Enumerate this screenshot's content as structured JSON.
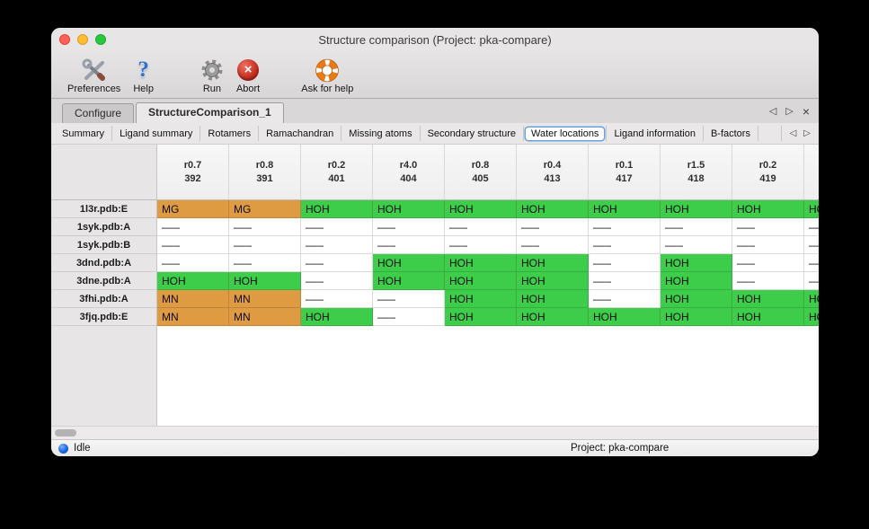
{
  "window": {
    "title": "Structure comparison (Project: pka-compare)"
  },
  "toolbar": {
    "items": [
      {
        "label": "Preferences"
      },
      {
        "label": "Help"
      },
      {
        "label": "Run"
      },
      {
        "label": "Abort"
      },
      {
        "label": "Ask for help"
      }
    ]
  },
  "primary_tabs": {
    "tabs": [
      {
        "label": "Configure",
        "active": false
      },
      {
        "label": "StructureComparison_1",
        "active": true
      }
    ],
    "nav": {
      "prev": "◁",
      "next": "▷",
      "close": "×"
    }
  },
  "secondary_tabs": {
    "tabs": [
      "Summary",
      "Ligand summary",
      "Rotamers",
      "Ramachandran",
      "Missing atoms",
      "Secondary structure",
      "Water locations",
      "Ligand information",
      "B-factors"
    ],
    "selected": "Water locations",
    "nav": {
      "prev": "◁",
      "next": "▷"
    }
  },
  "table": {
    "columns": [
      {
        "metric": "r0.7",
        "residue": "392"
      },
      {
        "metric": "r0.8",
        "residue": "391"
      },
      {
        "metric": "r0.2",
        "residue": "401"
      },
      {
        "metric": "r4.0",
        "residue": "404"
      },
      {
        "metric": "r0.8",
        "residue": "405"
      },
      {
        "metric": "r0.4",
        "residue": "413"
      },
      {
        "metric": "r0.1",
        "residue": "417"
      },
      {
        "metric": "r1.5",
        "residue": "418"
      },
      {
        "metric": "r0.2",
        "residue": "419"
      },
      {
        "metric": "",
        "residue": ""
      }
    ],
    "legend_colors": {
      "water": "#3ecd4b",
      "metal": "#df9b42",
      "none": "#ffffff"
    },
    "rows": [
      {
        "name": "1l3r.pdb:E",
        "cells": [
          {
            "text": "MG",
            "kind": "metal"
          },
          {
            "text": "MG",
            "kind": "metal"
          },
          {
            "text": "HOH",
            "kind": "water"
          },
          {
            "text": "HOH",
            "kind": "water"
          },
          {
            "text": "HOH",
            "kind": "water"
          },
          {
            "text": "HOH",
            "kind": "water"
          },
          {
            "text": "HOH",
            "kind": "water"
          },
          {
            "text": "HOH",
            "kind": "water"
          },
          {
            "text": "HOH",
            "kind": "water"
          },
          {
            "text": "HOH",
            "kind": "water"
          }
        ]
      },
      {
        "name": "1syk.pdb:A",
        "cells": [
          {
            "text": "–––",
            "kind": "none"
          },
          {
            "text": "–––",
            "kind": "none"
          },
          {
            "text": "–––",
            "kind": "none"
          },
          {
            "text": "–––",
            "kind": "none"
          },
          {
            "text": "–––",
            "kind": "none"
          },
          {
            "text": "–––",
            "kind": "none"
          },
          {
            "text": "–––",
            "kind": "none"
          },
          {
            "text": "–––",
            "kind": "none"
          },
          {
            "text": "–––",
            "kind": "none"
          },
          {
            "text": "–––",
            "kind": "none"
          }
        ]
      },
      {
        "name": "1syk.pdb:B",
        "cells": [
          {
            "text": "–––",
            "kind": "none"
          },
          {
            "text": "–––",
            "kind": "none"
          },
          {
            "text": "–––",
            "kind": "none"
          },
          {
            "text": "–––",
            "kind": "none"
          },
          {
            "text": "–––",
            "kind": "none"
          },
          {
            "text": "–––",
            "kind": "none"
          },
          {
            "text": "–––",
            "kind": "none"
          },
          {
            "text": "–––",
            "kind": "none"
          },
          {
            "text": "–––",
            "kind": "none"
          },
          {
            "text": "–––",
            "kind": "none"
          }
        ]
      },
      {
        "name": "3dnd.pdb:A",
        "cells": [
          {
            "text": "–––",
            "kind": "none"
          },
          {
            "text": "–––",
            "kind": "none"
          },
          {
            "text": "–––",
            "kind": "none"
          },
          {
            "text": "HOH",
            "kind": "water"
          },
          {
            "text": "HOH",
            "kind": "water"
          },
          {
            "text": "HOH",
            "kind": "water"
          },
          {
            "text": "–––",
            "kind": "none"
          },
          {
            "text": "HOH",
            "kind": "water"
          },
          {
            "text": "–––",
            "kind": "none"
          },
          {
            "text": "–––",
            "kind": "none"
          }
        ]
      },
      {
        "name": "3dne.pdb:A",
        "cells": [
          {
            "text": "HOH",
            "kind": "water"
          },
          {
            "text": "HOH",
            "kind": "water"
          },
          {
            "text": "–––",
            "kind": "none"
          },
          {
            "text": "HOH",
            "kind": "water"
          },
          {
            "text": "HOH",
            "kind": "water"
          },
          {
            "text": "HOH",
            "kind": "water"
          },
          {
            "text": "–––",
            "kind": "none"
          },
          {
            "text": "HOH",
            "kind": "water"
          },
          {
            "text": "–––",
            "kind": "none"
          },
          {
            "text": "–––",
            "kind": "none"
          }
        ]
      },
      {
        "name": "3fhi.pdb:A",
        "cells": [
          {
            "text": "MN",
            "kind": "metal"
          },
          {
            "text": "MN",
            "kind": "metal"
          },
          {
            "text": "–––",
            "kind": "none"
          },
          {
            "text": "–––",
            "kind": "none"
          },
          {
            "text": "HOH",
            "kind": "water"
          },
          {
            "text": "HOH",
            "kind": "water"
          },
          {
            "text": "–––",
            "kind": "none"
          },
          {
            "text": "HOH",
            "kind": "water"
          },
          {
            "text": "HOH",
            "kind": "water"
          },
          {
            "text": "HOH",
            "kind": "water"
          }
        ]
      },
      {
        "name": "3fjq.pdb:E",
        "cells": [
          {
            "text": "MN",
            "kind": "metal"
          },
          {
            "text": "MN",
            "kind": "metal"
          },
          {
            "text": "HOH",
            "kind": "water"
          },
          {
            "text": "–––",
            "kind": "none"
          },
          {
            "text": "HOH",
            "kind": "water"
          },
          {
            "text": "HOH",
            "kind": "water"
          },
          {
            "text": "HOH",
            "kind": "water"
          },
          {
            "text": "HOH",
            "kind": "water"
          },
          {
            "text": "HOH",
            "kind": "water"
          },
          {
            "text": "HOH",
            "kind": "water"
          }
        ]
      }
    ]
  },
  "statusbar": {
    "status": "Idle",
    "project": "Project: pka-compare"
  }
}
